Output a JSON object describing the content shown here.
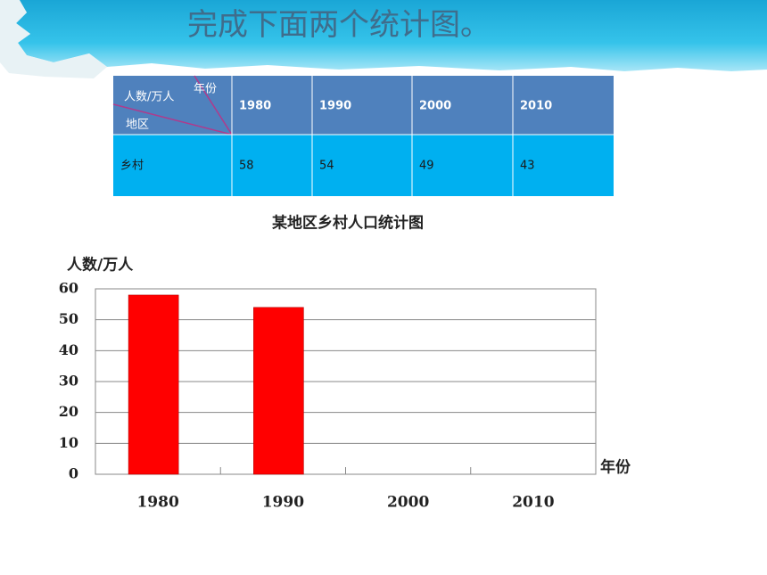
{
  "title": "完成下面两个统计图。",
  "table": {
    "corner": {
      "top": "年份",
      "middle": "人数/万人",
      "bottom": "地区"
    },
    "header": [
      "1980",
      "1990",
      "2000",
      "2010"
    ],
    "rows": [
      [
        "乡村",
        58,
        54,
        49,
        43
      ]
    ]
  },
  "chart_data": {
    "type": "bar",
    "title": "某地区乡村人口统计图",
    "y_label": "人数/万人",
    "x_label": "年份",
    "categories": [
      "1980",
      "1990",
      "2000",
      "2010"
    ],
    "values": [
      58,
      54,
      null,
      null
    ],
    "color": "#ff0000",
    "ylim": [
      0,
      60
    ],
    "yticks": [
      0,
      10,
      20,
      30,
      40,
      50,
      60
    ],
    "grid": true
  }
}
